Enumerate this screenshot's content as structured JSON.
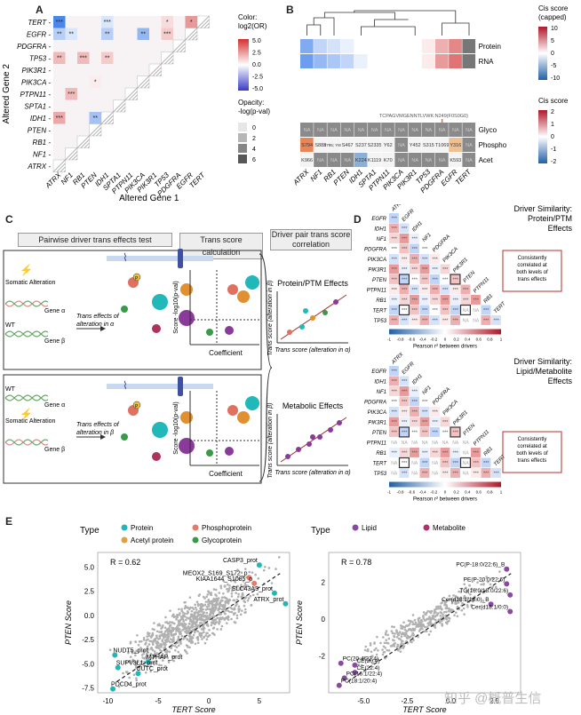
{
  "panel_labels": {
    "A": "A",
    "B": "B",
    "C": "C",
    "D": "D",
    "E": "E"
  },
  "panelA": {
    "y_title": "Altered Gene 2",
    "x_title": "Altered Gene 1",
    "rows": [
      "TERT",
      "EGFR",
      "PDGFRA",
      "TP53",
      "PIK3R1",
      "PIK3CA",
      "PTPN11",
      "SPTA1",
      "IDH1",
      "PTEN",
      "RB1",
      "NF1",
      "ATRX"
    ],
    "cols": [
      "ATRX",
      "NF1",
      "RB1",
      "PTEN",
      "IDH1",
      "SPTA1",
      "PTPN11",
      "PIK3CA",
      "PIK3R1",
      "TP53",
      "PDGFRA",
      "EGFR",
      "TERT"
    ],
    "marks": [
      {
        "r": 0,
        "c": 0,
        "v": -5,
        "s": "***"
      },
      {
        "r": 0,
        "c": 4,
        "v": -1,
        "s": "***"
      },
      {
        "r": 0,
        "c": 9,
        "v": 1,
        "s": "*"
      },
      {
        "r": 0,
        "c": 11,
        "v": 3,
        "s": "*"
      },
      {
        "r": 1,
        "c": 0,
        "v": -2,
        "s": "**"
      },
      {
        "r": 1,
        "c": 1,
        "v": -1,
        "s": "**"
      },
      {
        "r": 1,
        "c": 4,
        "v": -2,
        "s": "**"
      },
      {
        "r": 1,
        "c": 7,
        "v": -3,
        "s": "**"
      },
      {
        "r": 1,
        "c": 9,
        "v": 1.5,
        "s": "***"
      },
      {
        "r": 3,
        "c": 0,
        "v": 2,
        "s": "**"
      },
      {
        "r": 3,
        "c": 2,
        "v": 2,
        "s": "***"
      },
      {
        "r": 3,
        "c": 4,
        "v": 1.5,
        "s": "**"
      },
      {
        "r": 5,
        "c": 3,
        "v": 0.5,
        "s": "*"
      },
      {
        "r": 6,
        "c": 1,
        "v": 2,
        "s": "***"
      },
      {
        "r": 8,
        "c": 0,
        "v": 2.5,
        "s": "***"
      },
      {
        "r": 8,
        "c": 3,
        "v": -2.5,
        "s": "**"
      }
    ],
    "legend_color_title": "Color:\nlog2(OR)",
    "legend_color_ticks": [
      "5.0",
      "2.5",
      "0.0",
      "-2.5",
      "-5.0"
    ],
    "legend_opacity_title": "Opacity:\n-log(p-val)",
    "legend_opacity_ticks": [
      "0",
      "2",
      "4",
      "6"
    ]
  },
  "panelB": {
    "genes": [
      "ATRX",
      "NF1",
      "RB1",
      "PTEN",
      "IDH1",
      "SPTA1",
      "PTPN11",
      "PIK3CA",
      "PIK3R1",
      "TP53",
      "PDGFRA",
      "EGFR",
      "TERT"
    ],
    "protein": [
      -6,
      -3,
      -2,
      -1,
      0,
      0,
      0,
      0,
      0,
      1,
      4,
      6,
      "NA"
    ],
    "rna": [
      -7,
      -5,
      -4,
      -3,
      -1,
      0,
      0,
      0,
      0,
      1,
      5,
      7,
      "NA"
    ],
    "row_labels": [
      "Protein",
      "RNA"
    ],
    "ptm_rows": [
      "Glyco",
      "Phospho",
      "Acet"
    ],
    "glyco": [
      "NA",
      "NA",
      "NA",
      "NA",
      "NA",
      "NA",
      "NA",
      "NA",
      "NA",
      "NA",
      "NA",
      "NA",
      "NA"
    ],
    "phospho": [
      "S794",
      "S883",
      "S795; Y805",
      "S467",
      "S237",
      "S2335",
      "Y62",
      "NA",
      "Y452",
      "S315",
      "T1069",
      "Y316",
      "NA"
    ],
    "acet": [
      "K966",
      "NA",
      "NA",
      "NA",
      "K224",
      "K1119",
      "K70",
      "NA",
      "NA",
      "NA",
      "NA",
      "K593",
      "NA"
    ],
    "glyco_note": "TCPAGVMGENNTLVWK:N249(F0S0G0)",
    "legend1_title": "Cis score\n(capped)",
    "legend1_ticks": [
      "10",
      "5",
      "0",
      "-5",
      "-10"
    ],
    "legend2_title": "Cis score",
    "legend2_ticks": [
      "2",
      "1",
      "0",
      "-1",
      "-2"
    ]
  },
  "panelC": {
    "box1": "Pairwise driver trans effects test",
    "box2": "Trans score calculation",
    "box3": "Driver pair trans score correlation",
    "somatic1": "Somatic Alteration",
    "gene_alpha": "Gene α",
    "wt1": "WT",
    "gene_beta": "Gene β",
    "trans1": "Trans effects of alteration in α",
    "wt2": "WT",
    "gene_alpha2": "Gene α",
    "somatic2": "Somatic Alteration",
    "gene_beta2": "Gene β",
    "trans2": "Trans effects of alteration in β",
    "score_axis": "Score\n-log10(p-val)",
    "coef_axis": "Coefficient",
    "protein_title": "Protein/PTM Effects",
    "metabolic_title": "Metabolic Effects",
    "y_axis": "Trans score\n(alteration in β)",
    "x_axis": "Trans score\n(alteration in α)"
  },
  "panelD": {
    "genes": [
      "EGFR",
      "IDH1",
      "NF1",
      "PDGFRA",
      "PIK3CA",
      "PIK3R1",
      "PTEN",
      "PTPN11",
      "RB1",
      "TERT",
      "TP53"
    ],
    "cols": [
      "ATRX",
      "EGFR",
      "IDH1",
      "NF1",
      "PDGFRA",
      "PIK3CA",
      "PIK3R1",
      "PTEN",
      "PTPN11",
      "RB1",
      "TERT"
    ],
    "title1": "Driver Similarity:\nProtein/PTM\nEffects",
    "title2": "Driver Similarity:\nLipid/Metabolite\nEffects",
    "callout": "Consistently correlated at both levels of trans effects",
    "legend_ticks": [
      "-1",
      "-0.8",
      "-0.6",
      "-0.4",
      "-0.2",
      "0",
      "0.2",
      "0.4",
      "0.6",
      "0.8",
      "1"
    ],
    "legend_title": "Pearson r² between drivers",
    "na": "NA"
  },
  "panelE": {
    "left": {
      "type_label": "Type",
      "legend": [
        {
          "name": "Protein",
          "color": "#1fb8b8"
        },
        {
          "name": "Phosphoprotein",
          "color": "#e57a6a"
        },
        {
          "name": "Acetyl protein",
          "color": "#e0a040"
        },
        {
          "name": "Glycoprotein",
          "color": "#3a9a4a"
        }
      ],
      "r": "R = 0.62",
      "ylabel": "PTEN Score",
      "xlabel": "TERT Score",
      "xticks": [
        "-10",
        "-5",
        "0",
        "5"
      ],
      "yticks": [
        "5.0",
        "2.5",
        "0.0",
        "-2.5",
        "-5.0",
        "-7.5"
      ],
      "labels": [
        "CASP3_prot",
        "MEOX2_S169_S172_p",
        "KIAA1644_S1085_p",
        "SLC43A3_prot",
        "ATRX_prot",
        "NUDT5_prot",
        "MTHAP_prot",
        "SUPV3L1_prot",
        "CUTC_prot",
        "PDCD4_prot"
      ]
    },
    "right": {
      "type_label": "Type",
      "legend": [
        {
          "name": "Lipid",
          "color": "#8a4aa0"
        },
        {
          "name": "Metabolite",
          "color": "#b0306a"
        }
      ],
      "r": "R = 0.78",
      "ylabel": "PTEN Score",
      "xlabel": "TERT Score",
      "xticks": [
        "-5.0",
        "-2.5",
        "0.0",
        "2.5"
      ],
      "yticks": [
        "2",
        "0",
        "-2"
      ],
      "labels": [
        "PC(P-18:0/22:6)_B",
        "PE(P-20:0/22:6)",
        "TG(16:0/18:0/22:6)",
        "Cer(d18:1/18:0)_B",
        "Cer(d18:1/0:0)",
        "PC(20:4/22:4)",
        "CE(20:4)",
        "CE(22:4)",
        "PC(16:1/22:4)",
        "PC(18:1/20:4)"
      ]
    }
  },
  "watermark": "知乎 @概普生信"
}
